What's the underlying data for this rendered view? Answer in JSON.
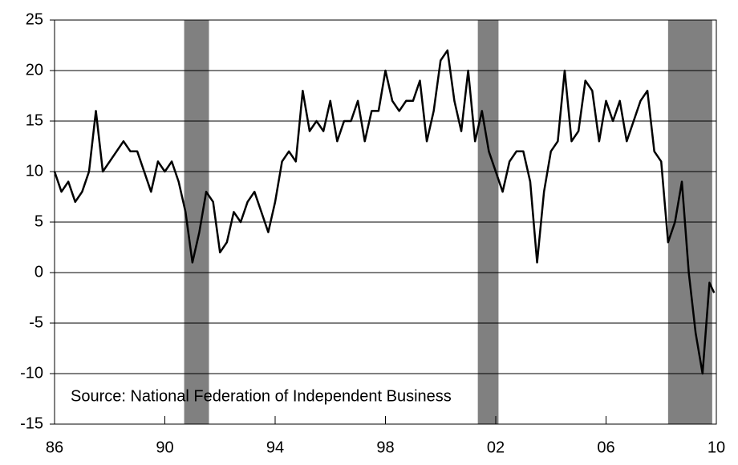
{
  "chart_data": {
    "type": "line",
    "annotation": "Source: National Federation of Independent Business",
    "x": [
      1986,
      1986.25,
      1986.5,
      1986.75,
      1987,
      1987.25,
      1987.5,
      1987.75,
      1988,
      1988.25,
      1988.5,
      1988.75,
      1989,
      1989.25,
      1989.5,
      1989.75,
      1990,
      1990.25,
      1990.5,
      1990.75,
      1991,
      1991.25,
      1991.5,
      1991.75,
      1992,
      1992.25,
      1992.5,
      1992.75,
      1993,
      1993.25,
      1993.5,
      1993.75,
      1994,
      1994.25,
      1994.5,
      1994.75,
      1995,
      1995.25,
      1995.5,
      1995.75,
      1996,
      1996.25,
      1996.5,
      1996.75,
      1997,
      1997.25,
      1997.5,
      1997.75,
      1998,
      1998.25,
      1998.5,
      1998.75,
      1999,
      1999.25,
      1999.5,
      1999.75,
      2000,
      2000.25,
      2000.5,
      2000.75,
      2001,
      2001.25,
      2001.5,
      2001.75,
      2002,
      2002.25,
      2002.5,
      2002.75,
      2003,
      2003.25,
      2003.5,
      2003.75,
      2004,
      2004.25,
      2004.5,
      2004.75,
      2005,
      2005.25,
      2005.5,
      2005.75,
      2006,
      2006.25,
      2006.5,
      2006.75,
      2007,
      2007.25,
      2007.5,
      2007.75,
      2008,
      2008.25,
      2008.5,
      2008.75,
      2009,
      2009.25,
      2009.5,
      2009.75,
      2009.92
    ],
    "values": [
      10,
      8,
      9,
      7,
      8,
      10,
      16,
      10,
      11,
      12,
      13,
      12,
      12,
      10,
      8,
      11,
      10,
      11,
      9,
      6,
      1,
      4,
      8,
      7,
      2,
      3,
      6,
      5,
      7,
      8,
      6,
      4,
      7,
      11,
      12,
      11,
      18,
      14,
      15,
      14,
      17,
      13,
      15,
      15,
      17,
      13,
      16,
      16,
      20,
      17,
      16,
      17,
      17,
      19,
      13,
      16,
      21,
      22,
      17,
      14,
      20,
      13,
      16,
      12,
      10,
      8,
      11,
      12,
      12,
      9,
      1,
      8,
      12,
      13,
      20,
      13,
      14,
      19,
      18,
      13,
      17,
      15,
      17,
      13,
      15,
      17,
      18,
      12,
      11,
      3,
      5,
      9,
      0,
      -6,
      -10,
      -1,
      -2
    ],
    "color": "#000000",
    "shaded_periods": [
      [
        1990.7,
        1991.6
      ],
      [
        2001.35,
        2002.1
      ],
      [
        2008.25,
        2009.85
      ]
    ],
    "shade_color": "#808080",
    "xlim": [
      1986,
      2010
    ],
    "xticks": [
      {
        "value": 1986,
        "label": "86"
      },
      {
        "value": 1990,
        "label": "90"
      },
      {
        "value": 1994,
        "label": "94"
      },
      {
        "value": 1998,
        "label": "98"
      },
      {
        "value": 2002,
        "label": "02"
      },
      {
        "value": 2006,
        "label": "06"
      },
      {
        "value": 2010,
        "label": "10"
      }
    ],
    "ylim": [
      -15,
      25
    ],
    "yticks": [
      -15,
      -10,
      -5,
      0,
      5,
      10,
      15,
      20,
      25
    ],
    "grid": true
  }
}
